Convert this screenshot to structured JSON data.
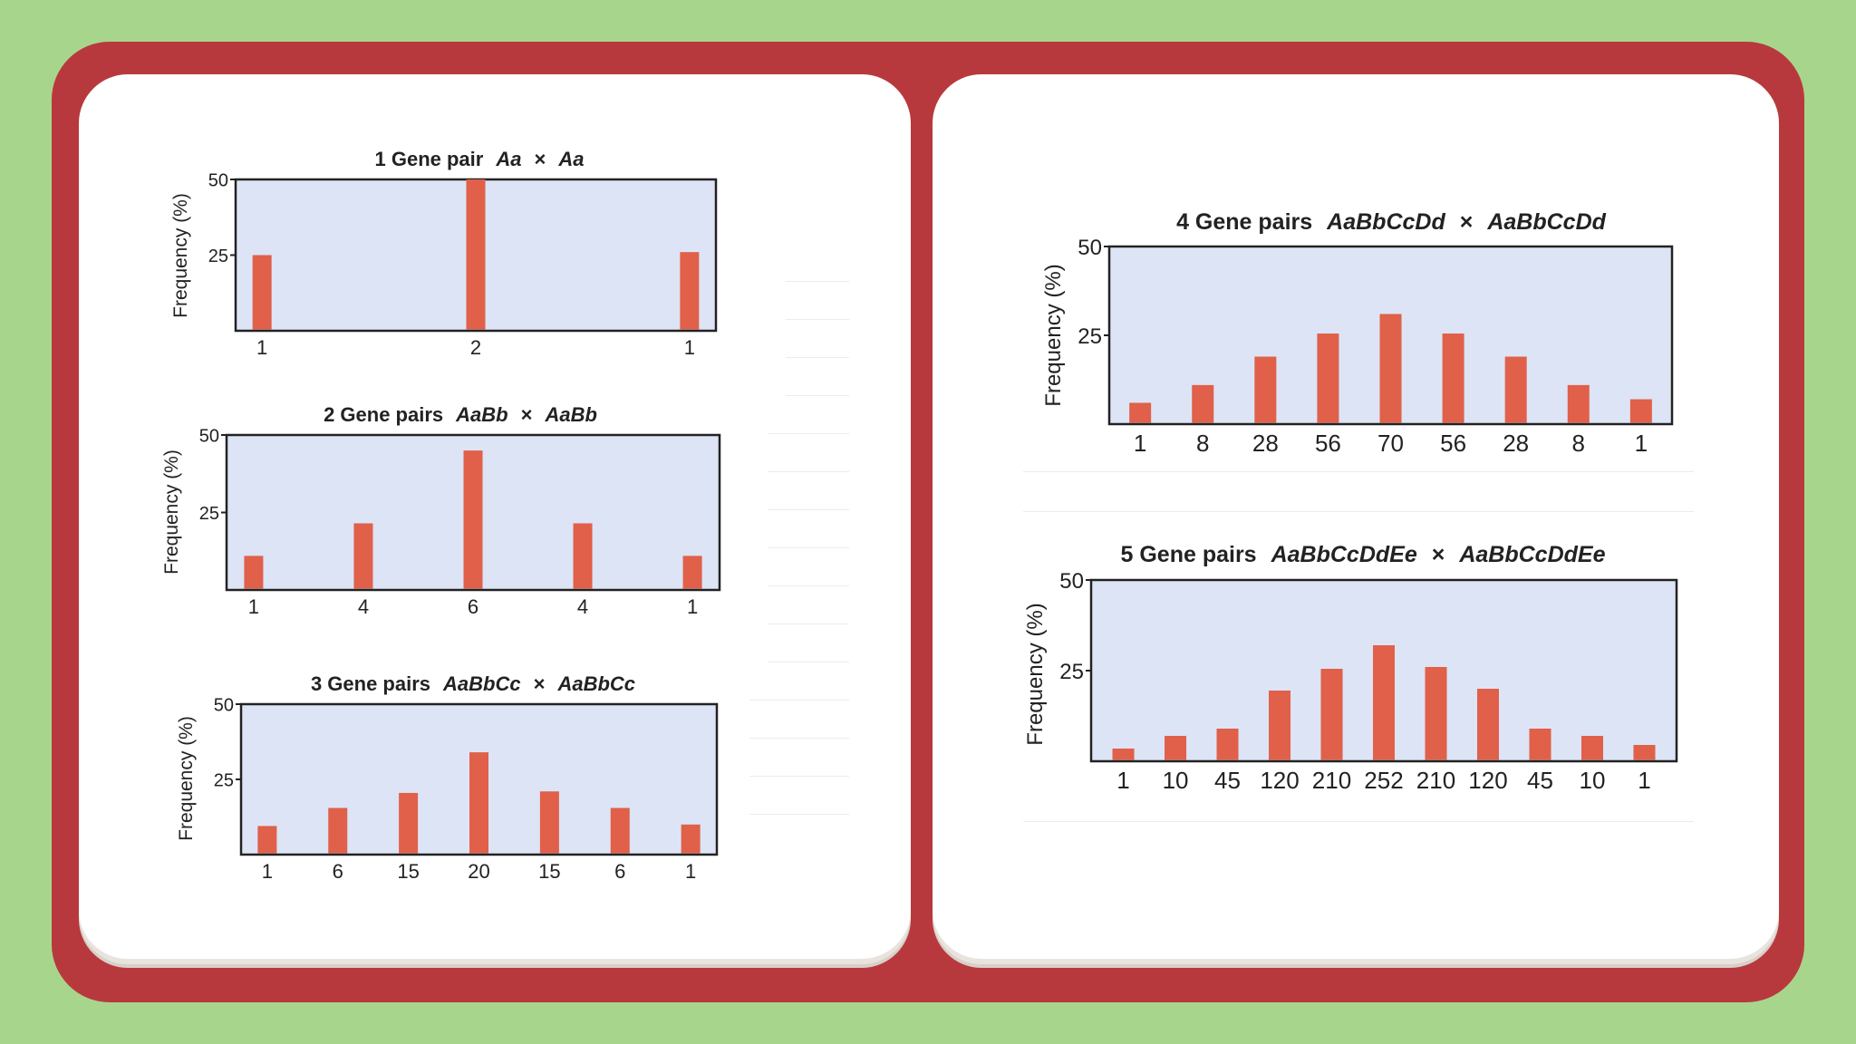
{
  "colors": {
    "background": "#a8d58c",
    "book": "#b8393d",
    "page": "#ffffff",
    "plot_bg": "#dde4f5",
    "bar": "#e0604a"
  },
  "chart_data": [
    {
      "type": "bar",
      "title_prefix": "1 Gene pair",
      "cross": [
        "Aa",
        "Aa"
      ],
      "ylabel": "Frequency (%)",
      "ylim": [
        0,
        50
      ],
      "yticks": [
        25,
        50
      ],
      "categories": [
        "1",
        "2",
        "1"
      ],
      "values": [
        25,
        50,
        26
      ]
    },
    {
      "type": "bar",
      "title_prefix": "2 Gene pairs",
      "cross": [
        "AaBb",
        "AaBb"
      ],
      "ylabel": "Frequency (%)",
      "ylim": [
        0,
        50
      ],
      "yticks": [
        25,
        50
      ],
      "categories": [
        "1",
        "4",
        "6",
        "4",
        "1"
      ],
      "values": [
        11,
        21.5,
        45,
        21.5,
        11
      ]
    },
    {
      "type": "bar",
      "title_prefix": "3 Gene pairs",
      "cross": [
        "AaBbCc",
        "AaBbCc"
      ],
      "ylabel": "Frequency (%)",
      "ylim": [
        0,
        50
      ],
      "yticks": [
        25,
        50
      ],
      "categories": [
        "1",
        "6",
        "15",
        "20",
        "15",
        "6",
        "1"
      ],
      "values": [
        9.5,
        15.5,
        20.5,
        34,
        21,
        15.5,
        10
      ]
    },
    {
      "type": "bar",
      "title_prefix": "4 Gene pairs",
      "cross": [
        "AaBbCcDd",
        "AaBbCcDd"
      ],
      "ylabel": "Frequency (%)",
      "ylim": [
        0,
        50
      ],
      "yticks": [
        25,
        50
      ],
      "categories": [
        "1",
        "8",
        "28",
        "56",
        "70",
        "56",
        "28",
        "8",
        "1"
      ],
      "values": [
        6,
        11,
        19,
        25.5,
        31,
        25.5,
        19,
        11,
        7
      ]
    },
    {
      "type": "bar",
      "title_prefix": "5 Gene pairs",
      "cross": [
        "AaBbCcDdEe",
        "AaBbCcDdEe"
      ],
      "ylabel": "Frequency (%)",
      "ylim": [
        0,
        50
      ],
      "yticks": [
        25,
        50
      ],
      "categories": [
        "1",
        "10",
        "45",
        "120",
        "210",
        "252",
        "210",
        "120",
        "45",
        "10",
        "1"
      ],
      "values": [
        3.5,
        7,
        9,
        19.5,
        25.5,
        32,
        26,
        20,
        9,
        7,
        4.5
      ]
    }
  ]
}
